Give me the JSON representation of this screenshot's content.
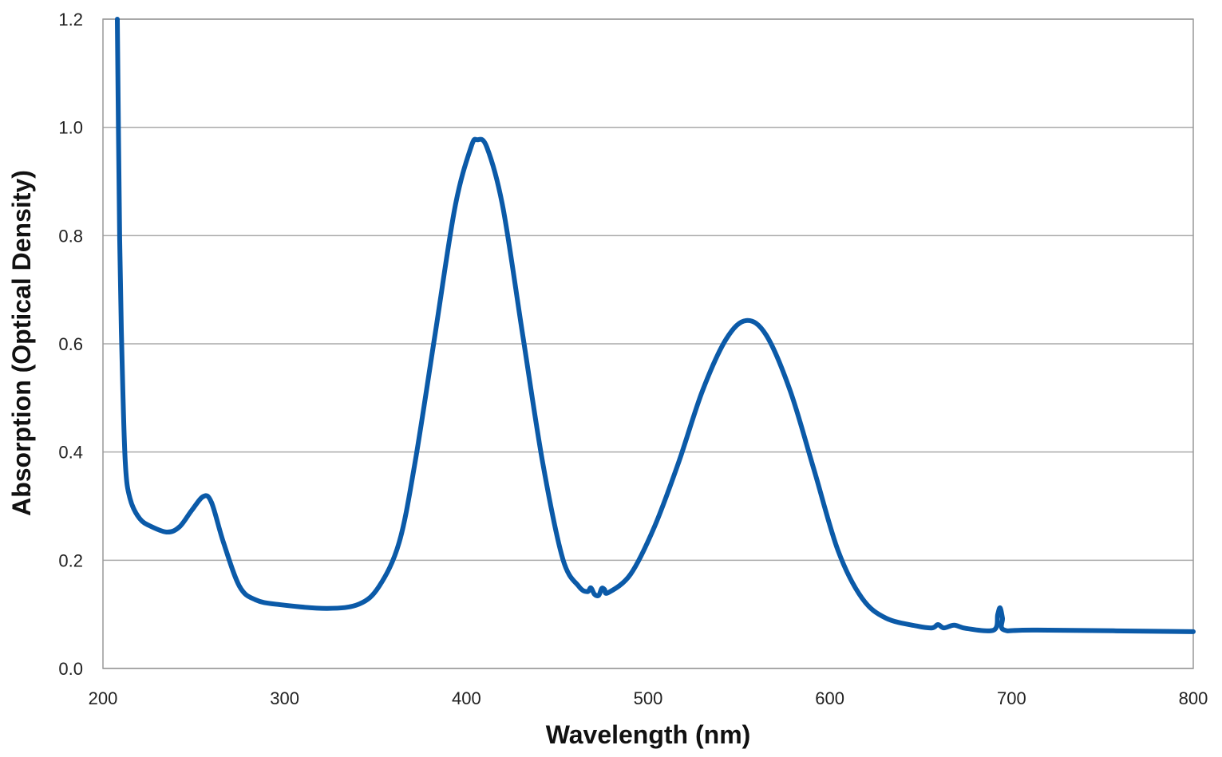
{
  "chart_data": {
    "type": "line",
    "title": "",
    "xlabel": "Wavelength (nm)",
    "ylabel": "Absorption (Optical Density)",
    "xlim": [
      200,
      800
    ],
    "ylim": [
      0,
      1.2
    ],
    "xticks": [
      "200",
      "300",
      "400",
      "500",
      "600",
      "700",
      "800"
    ],
    "yticks": [
      "0.0",
      "0.2",
      "0.4",
      "0.6",
      "0.8",
      "1.0",
      "1.2"
    ],
    "grid": "horizontal",
    "line_color": "#0b5aa8",
    "series": [
      {
        "x": [
          207.9,
          209.2,
          210.5,
          212.3,
          214.9,
          220.2,
          226.8,
          235.6,
          242.2,
          248.8,
          255.3,
          259.7,
          266.3,
          275.1,
          283.9,
          297.1,
          323.4,
          341,
          352,
          363,
          371.7,
          382.7,
          393.7,
          402.5,
          406,
          411.3,
          420.1,
          431,
          442,
          453,
          461.8,
          466.5,
          468.5,
          470.5,
          472.8,
          474.5,
          476,
          478,
          490.3,
          503.5,
          516.7,
          529.9,
          543,
          554,
          565,
          578.2,
          591.4,
          604.5,
          617.7,
          630.9,
          648.5,
          656.4,
          659.5,
          662.8,
          668.5,
          675,
          690.2,
          692.4,
          693.7,
          695,
          696,
          714.3,
          800
        ],
        "y": [
          1.2,
          0.793,
          0.572,
          0.38,
          0.314,
          0.277,
          0.262,
          0.252,
          0.262,
          0.292,
          0.318,
          0.307,
          0.233,
          0.152,
          0.127,
          0.118,
          0.111,
          0.119,
          0.152,
          0.233,
          0.38,
          0.616,
          0.852,
          0.963,
          0.977,
          0.963,
          0.852,
          0.616,
          0.38,
          0.203,
          0.152,
          0.142,
          0.149,
          0.137,
          0.135,
          0.148,
          0.146,
          0.14,
          0.174,
          0.262,
          0.38,
          0.513,
          0.609,
          0.643,
          0.616,
          0.513,
          0.366,
          0.218,
          0.13,
          0.093,
          0.078,
          0.075,
          0.081,
          0.075,
          0.08,
          0.074,
          0.071,
          0.1,
          0.112,
          0.093,
          0.071,
          0.071,
          0.068
        ]
      }
    ]
  }
}
